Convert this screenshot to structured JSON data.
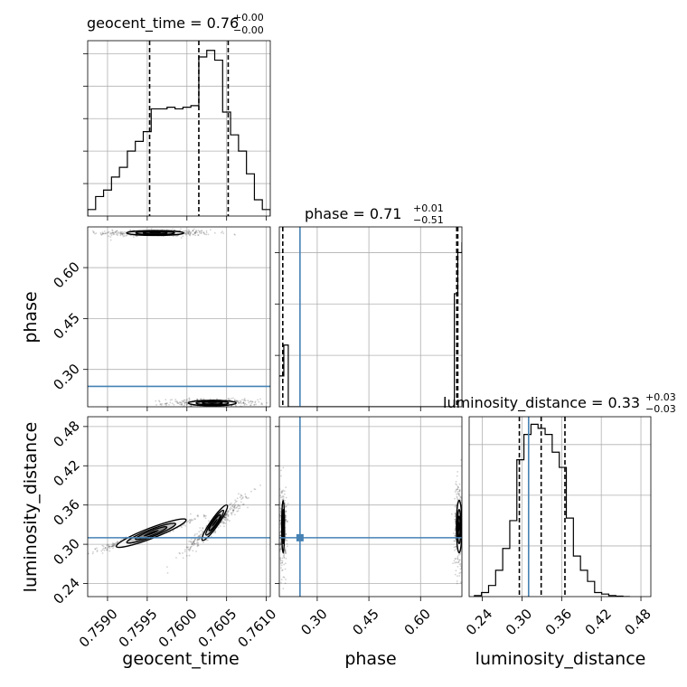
{
  "chart_data": {
    "type": "corner",
    "parameters": [
      "geocent_time",
      "phase",
      "luminosity_distance"
    ],
    "truth_color": "#4682b4",
    "truths": {
      "geocent_time": null,
      "phase": 0.25,
      "luminosity_distance": 0.31
    },
    "panels": {
      "geocent_time": {
        "title_main": "geocent_time = 0.76",
        "title_sup": "+0.00",
        "title_sub": "−0.00",
        "xlim": [
          0.75875,
          0.76105
        ],
        "xticks": [
          0.759,
          0.7595,
          0.76,
          0.7605,
          0.761
        ],
        "xtick_labels": [
          "0.7590",
          "0.7595",
          "0.7600",
          "0.7605",
          "0.7610"
        ],
        "quantiles": [
          0.75953,
          0.76015,
          0.76052
        ],
        "hist_counts": [
          0.2,
          0.6,
          0.8,
          1.2,
          1.5,
          2.0,
          2.3,
          2.6,
          3.3,
          3.3,
          3.35,
          3.3,
          3.35,
          3.4,
          4.9,
          5.1,
          4.8,
          3.2,
          2.5,
          2.0,
          1.3,
          0.5,
          0.2
        ],
        "ylim": [
          0,
          5.4
        ]
      },
      "phase": {
        "title_main": "phase = 0.71",
        "title_sup": "+0.01",
        "title_sub": "−0.51",
        "xlim": [
          0.19,
          0.72
        ],
        "xticks": [
          0.3,
          0.45,
          0.6
        ],
        "xtick_labels": [
          "0.30",
          "0.45",
          "0.60"
        ],
        "quantiles": [
          0.2,
          0.705,
          0.708
        ],
        "hist_bins": [
          0.18,
          0.203,
          0.216,
          0.676,
          0.698,
          0.708,
          0.72
        ],
        "hist_counts": [
          0.6,
          1.2,
          0.0,
          0.0,
          2.2,
          3.0,
          3.2
        ],
        "ylim": [
          0,
          3.5
        ]
      },
      "luminosity_distance": {
        "title_main": "luminosity_distance = 0.33",
        "title_sup": "+0.03",
        "title_sub": "−0.03",
        "xlim": [
          0.22,
          0.495
        ],
        "xticks": [
          0.24,
          0.3,
          0.36,
          0.42,
          0.48
        ],
        "xtick_labels": [
          "0.24",
          "0.30",
          "0.36",
          "0.42",
          "0.48"
        ],
        "quantiles": [
          0.296,
          0.329,
          0.365
        ],
        "hist_bins_start": 0.228,
        "hist_bin_width": 0.0107,
        "hist_counts": [
          0.02,
          0.08,
          0.22,
          0.52,
          0.95,
          1.5,
          2.7,
          3.2,
          3.4,
          3.32,
          3.2,
          2.85,
          2.55,
          1.55,
          0.8,
          0.52,
          0.3,
          0.08,
          0.05,
          0.02,
          0.01,
          0.0
        ],
        "ylim": [
          0,
          3.55
        ]
      }
    },
    "y_axes": {
      "phase": {
        "label": "phase",
        "ylim": [
          0.19,
          0.72
        ],
        "yticks": [
          0.3,
          0.45,
          0.6
        ],
        "ytick_labels": [
          "0.30",
          "0.45",
          "0.60"
        ]
      },
      "luminosity_distance": {
        "label": "luminosity_distance",
        "ylim": [
          0.22,
          0.495
        ],
        "yticks": [
          0.24,
          0.3,
          0.36,
          0.42,
          0.48
        ],
        "ytick_labels": [
          "0.24",
          "0.30",
          "0.36",
          "0.42",
          "0.48"
        ]
      }
    },
    "x_axes": {
      "geocent_time": {
        "label": "geocent_time"
      },
      "phase": {
        "label": "phase"
      },
      "luminosity_distance": {
        "label": "luminosity_distance"
      }
    },
    "scatter_2d": {
      "geocent_time__phase": {
        "blobs": [
          {
            "x": 0.7596,
            "y": 0.702,
            "sx": 0.00036,
            "sy": 0.005,
            "n": 420
          },
          {
            "x": 0.76032,
            "y": 0.201,
            "sx": 0.00028,
            "sy": 0.006,
            "n": 420
          }
        ]
      },
      "geocent_time__luminosity_distance": {
        "blobs": [
          {
            "x": 0.75955,
            "y": 0.317,
            "sx": 0.0003,
            "sy": 0.012,
            "corr": 0.97,
            "n": 520
          },
          {
            "x": 0.76035,
            "y": 0.33,
            "sx": 0.0002,
            "sy": 0.022,
            "corr": 0.96,
            "n": 360
          }
        ]
      },
      "phase__luminosity_distance": {
        "blobs": [
          {
            "x": 0.201,
            "y": 0.325,
            "sx": 0.005,
            "sy": 0.032,
            "n": 300
          },
          {
            "x": 0.71,
            "y": 0.33,
            "sx": 0.006,
            "sy": 0.034,
            "n": 300
          }
        ]
      }
    },
    "contours_2d": {
      "geocent_time__phase": [
        {
          "cx": 0.7596,
          "cy": 0.702,
          "rx": 0.00036,
          "ry": 0.007,
          "rot": 0,
          "levels": [
            1,
            0.68,
            0.42,
            0.2
          ]
        },
        {
          "cx": 0.76032,
          "cy": 0.201,
          "rx": 0.0003,
          "ry": 0.008,
          "rot": 0,
          "levels": [
            1,
            0.68,
            0.42,
            0.2
          ]
        }
      ],
      "geocent_time__luminosity_distance": [
        {
          "cx": 0.75955,
          "cy": 0.317,
          "rx": 0.00047,
          "ry": 0.008,
          "rot": -21,
          "levels": [
            1,
            0.7,
            0.45,
            0.22
          ]
        },
        {
          "cx": 0.76035,
          "cy": 0.333,
          "rx": 0.00027,
          "ry": 0.006,
          "rot": -55,
          "levels": [
            1,
            0.7,
            0.45,
            0.22
          ]
        }
      ],
      "phase__luminosity_distance": [
        {
          "cx": 0.201,
          "cy": 0.327,
          "rx": 0.004,
          "ry": 0.04,
          "rot": 0,
          "levels": [
            1,
            0.65,
            0.4,
            0.2
          ]
        },
        {
          "cx": 0.712,
          "cy": 0.327,
          "rx": 0.008,
          "ry": 0.04,
          "rot": 0,
          "levels": [
            1,
            0.65,
            0.4,
            0.2
          ]
        }
      ]
    }
  }
}
